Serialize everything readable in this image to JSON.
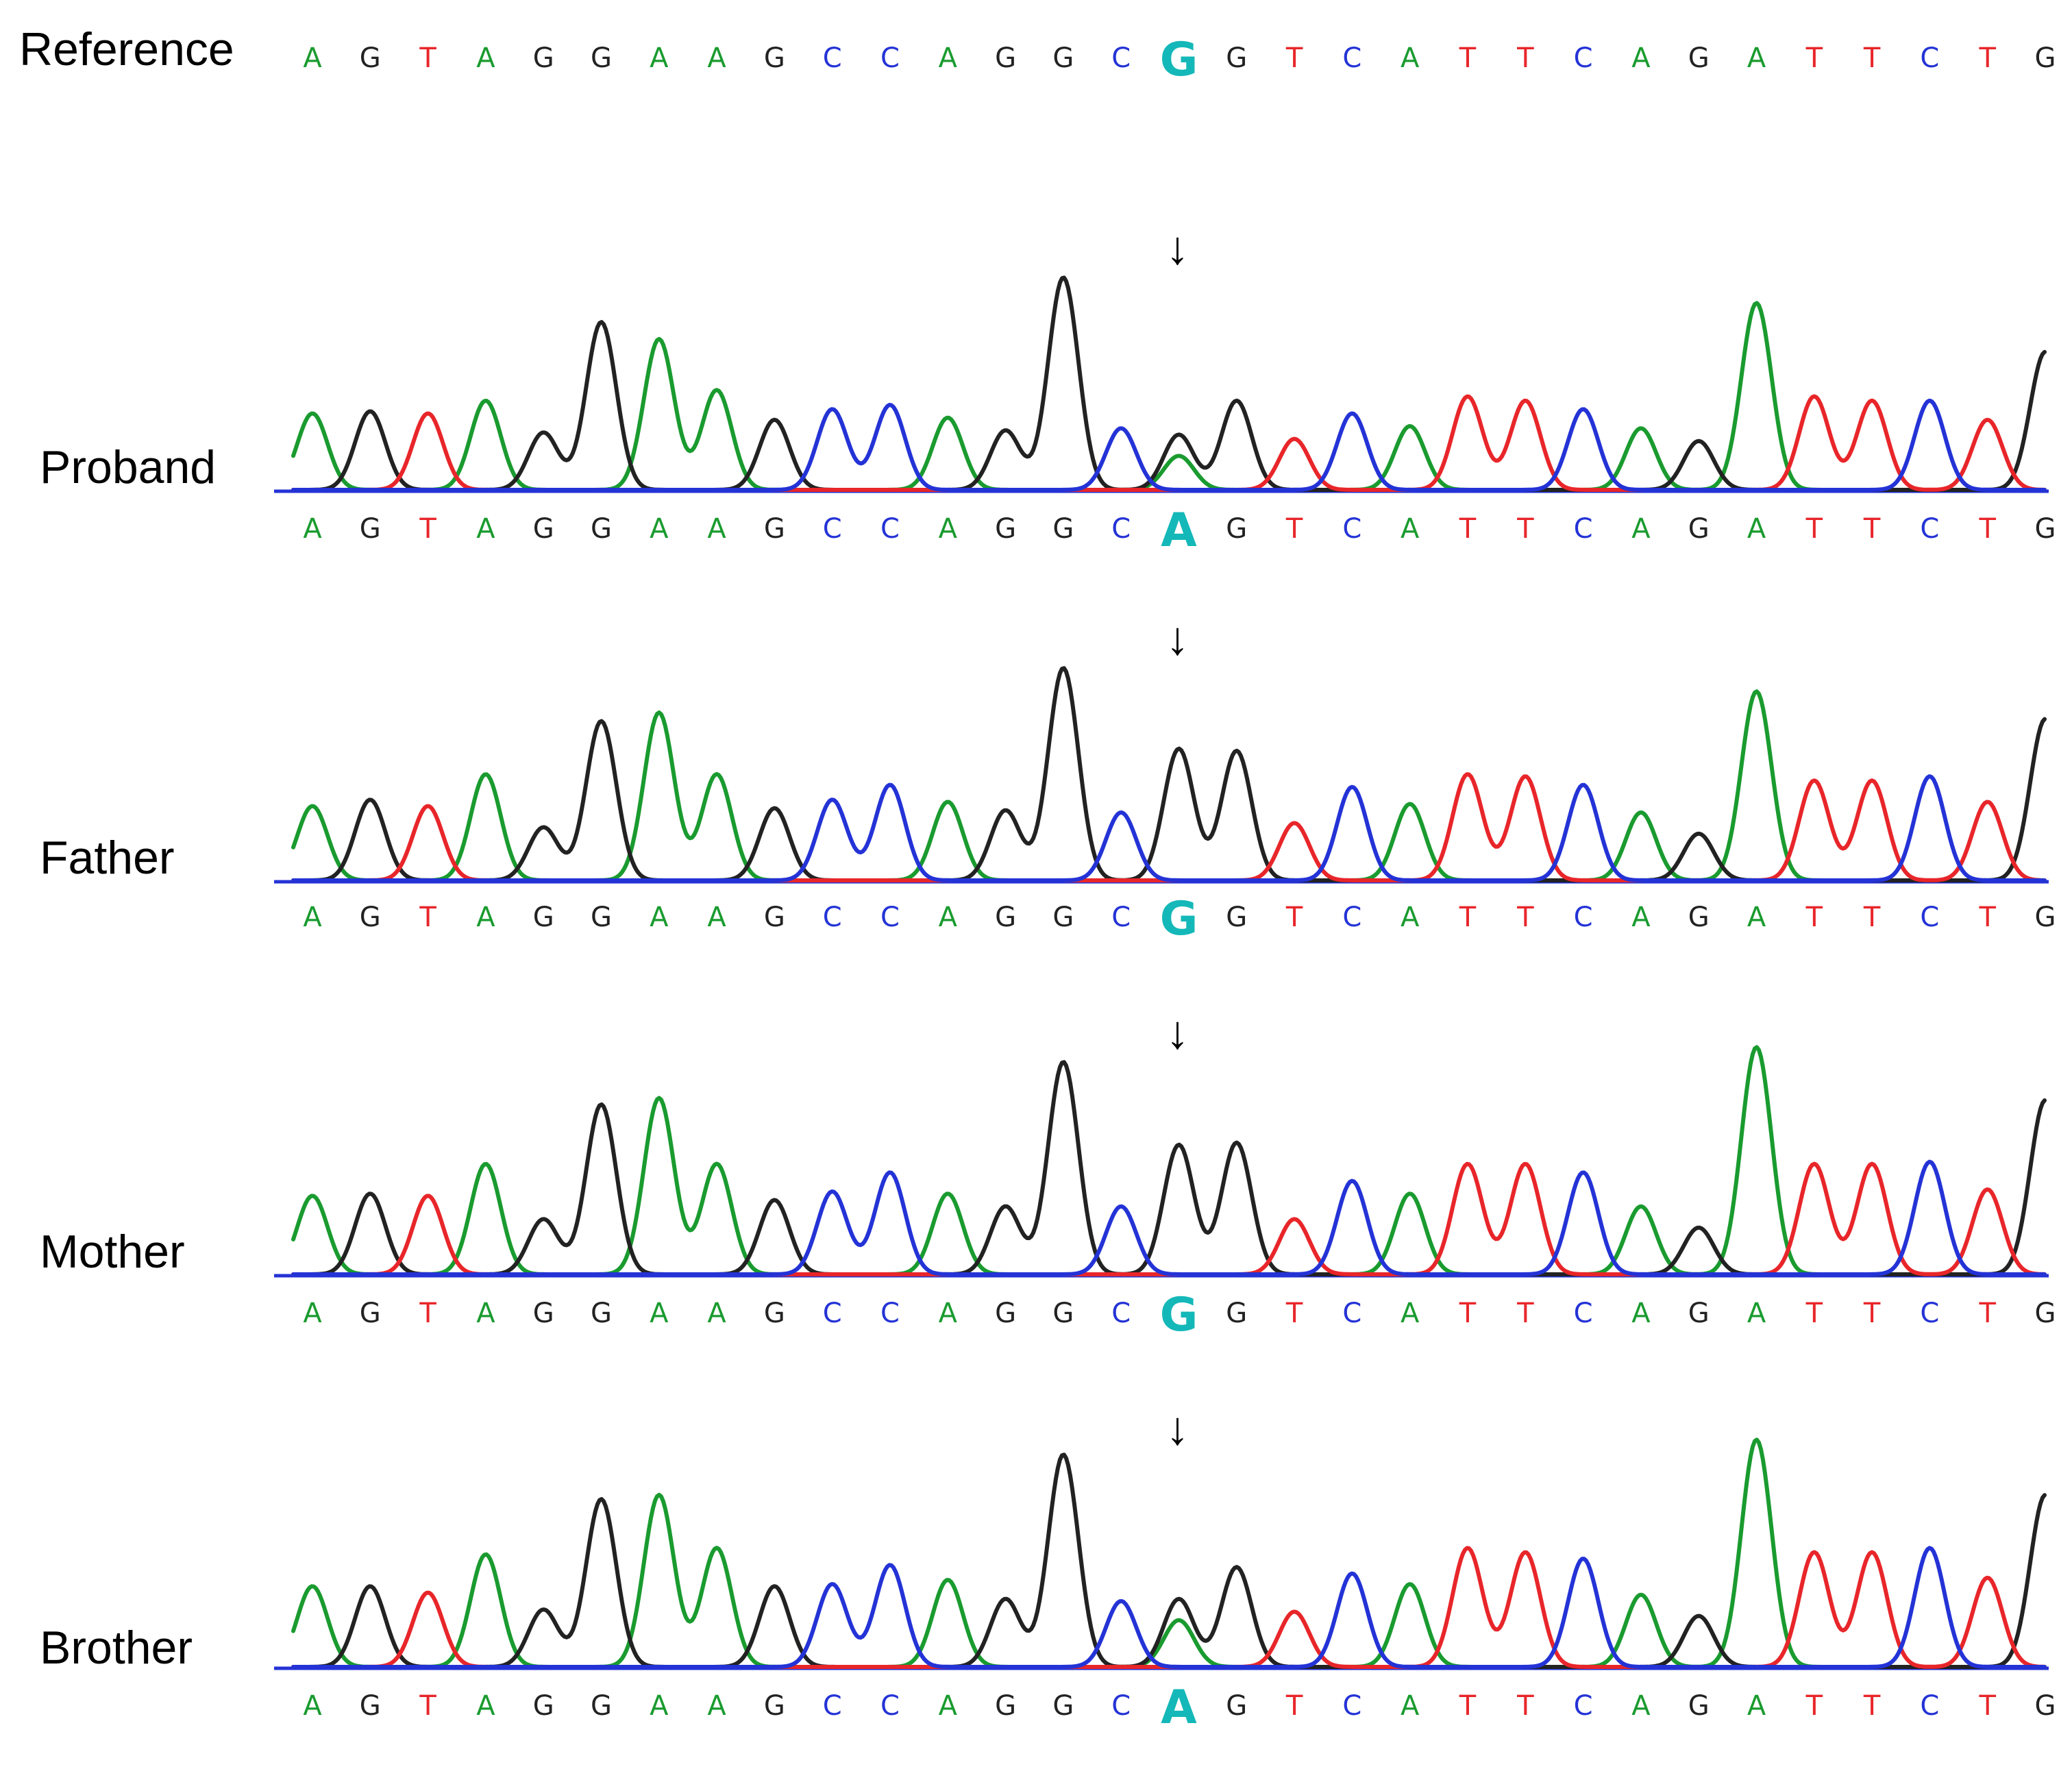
{
  "reference": {
    "label": "Reference",
    "sequence": [
      "A",
      "G",
      "T",
      "A",
      "G",
      "G",
      "A",
      "A",
      "G",
      "C",
      "C",
      "A",
      "G",
      "G",
      "C",
      "G",
      "G",
      "T",
      "C",
      "A",
      "T",
      "T",
      "C",
      "A",
      "G",
      "A",
      "T",
      "T",
      "C",
      "T",
      "G"
    ],
    "highlight_index": 15
  },
  "base_colors": {
    "A": "#1a9b2f",
    "G": "#222222",
    "T": "#e8262a",
    "C": "#2433d6",
    "highlight": "#14b8b8"
  },
  "arrow": {
    "glyph": "↓",
    "color": "#e8262a",
    "base_index": 15
  },
  "samples": [
    {
      "label": "Proband",
      "sequence": [
        "A",
        "G",
        "T",
        "A",
        "G",
        "G",
        "A",
        "A",
        "G",
        "C",
        "C",
        "A",
        "G",
        "G",
        "C",
        "A",
        "G",
        "T",
        "C",
        "A",
        "T",
        "T",
        "C",
        "A",
        "G",
        "A",
        "T",
        "T",
        "C",
        "T",
        "G"
      ],
      "highlight_index": 15,
      "peaks": [
        {
          "base": "A",
          "h": 0.36
        },
        {
          "base": "G",
          "h": 0.37
        },
        {
          "base": "T",
          "h": 0.36
        },
        {
          "base": "A",
          "h": 0.42
        },
        {
          "base": "G",
          "h": 0.27
        },
        {
          "base": "G",
          "h": 0.79
        },
        {
          "base": "A",
          "h": 0.71
        },
        {
          "base": "A",
          "h": 0.47
        },
        {
          "base": "G",
          "h": 0.33
        },
        {
          "base": "C",
          "h": 0.38
        },
        {
          "base": "C",
          "h": 0.4
        },
        {
          "base": "A",
          "h": 0.34
        },
        {
          "base": "G",
          "h": 0.28
        },
        {
          "base": "G",
          "h": 1.0
        },
        {
          "base": "C",
          "h": 0.29
        },
        {
          "base": "G",
          "h": 0.26,
          "second": "A",
          "h2": 0.16
        },
        {
          "base": "G",
          "h": 0.42
        },
        {
          "base": "T",
          "h": 0.24
        },
        {
          "base": "C",
          "h": 0.36
        },
        {
          "base": "A",
          "h": 0.3
        },
        {
          "base": "T",
          "h": 0.44
        },
        {
          "base": "T",
          "h": 0.42
        },
        {
          "base": "C",
          "h": 0.38
        },
        {
          "base": "A",
          "h": 0.29
        },
        {
          "base": "G",
          "h": 0.23
        },
        {
          "base": "A",
          "h": 0.88
        },
        {
          "base": "T",
          "h": 0.44
        },
        {
          "base": "T",
          "h": 0.42
        },
        {
          "base": "C",
          "h": 0.42
        },
        {
          "base": "T",
          "h": 0.33
        },
        {
          "base": "G",
          "h": 0.65
        }
      ]
    },
    {
      "label": "Father",
      "sequence": [
        "A",
        "G",
        "T",
        "A",
        "G",
        "G",
        "A",
        "A",
        "G",
        "C",
        "C",
        "A",
        "G",
        "G",
        "C",
        "G",
        "G",
        "T",
        "C",
        "A",
        "T",
        "T",
        "C",
        "A",
        "G",
        "A",
        "T",
        "T",
        "C",
        "T",
        "G"
      ],
      "highlight_index": 15,
      "peaks": [
        {
          "base": "A",
          "h": 0.35
        },
        {
          "base": "G",
          "h": 0.38
        },
        {
          "base": "T",
          "h": 0.35
        },
        {
          "base": "A",
          "h": 0.5
        },
        {
          "base": "G",
          "h": 0.25
        },
        {
          "base": "G",
          "h": 0.75
        },
        {
          "base": "A",
          "h": 0.79
        },
        {
          "base": "A",
          "h": 0.5
        },
        {
          "base": "G",
          "h": 0.34
        },
        {
          "base": "C",
          "h": 0.38
        },
        {
          "base": "C",
          "h": 0.45
        },
        {
          "base": "A",
          "h": 0.37
        },
        {
          "base": "G",
          "h": 0.33
        },
        {
          "base": "G",
          "h": 1.0
        },
        {
          "base": "C",
          "h": 0.32
        },
        {
          "base": "G",
          "h": 0.62
        },
        {
          "base": "G",
          "h": 0.61
        },
        {
          "base": "T",
          "h": 0.27
        },
        {
          "base": "C",
          "h": 0.44
        },
        {
          "base": "A",
          "h": 0.36
        },
        {
          "base": "T",
          "h": 0.5
        },
        {
          "base": "T",
          "h": 0.49
        },
        {
          "base": "C",
          "h": 0.45
        },
        {
          "base": "A",
          "h": 0.32
        },
        {
          "base": "G",
          "h": 0.22
        },
        {
          "base": "A",
          "h": 0.89
        },
        {
          "base": "T",
          "h": 0.47
        },
        {
          "base": "T",
          "h": 0.47
        },
        {
          "base": "C",
          "h": 0.49
        },
        {
          "base": "T",
          "h": 0.37
        },
        {
          "base": "G",
          "h": 0.76
        }
      ]
    },
    {
      "label": "Mother",
      "sequence": [
        "A",
        "G",
        "T",
        "A",
        "G",
        "G",
        "A",
        "A",
        "G",
        "C",
        "C",
        "A",
        "G",
        "G",
        "C",
        "G",
        "G",
        "T",
        "C",
        "A",
        "T",
        "T",
        "C",
        "A",
        "G",
        "A",
        "T",
        "T",
        "C",
        "T",
        "G"
      ],
      "highlight_index": 15,
      "peaks": [
        {
          "base": "A",
          "h": 0.37
        },
        {
          "base": "G",
          "h": 0.38
        },
        {
          "base": "T",
          "h": 0.37
        },
        {
          "base": "A",
          "h": 0.52
        },
        {
          "base": "G",
          "h": 0.26
        },
        {
          "base": "G",
          "h": 0.8
        },
        {
          "base": "A",
          "h": 0.83
        },
        {
          "base": "A",
          "h": 0.52
        },
        {
          "base": "G",
          "h": 0.35
        },
        {
          "base": "C",
          "h": 0.39
        },
        {
          "base": "C",
          "h": 0.48
        },
        {
          "base": "A",
          "h": 0.38
        },
        {
          "base": "G",
          "h": 0.32
        },
        {
          "base": "G",
          "h": 1.0
        },
        {
          "base": "C",
          "h": 0.32
        },
        {
          "base": "G",
          "h": 0.61
        },
        {
          "base": "G",
          "h": 0.62
        },
        {
          "base": "T",
          "h": 0.26
        },
        {
          "base": "C",
          "h": 0.44
        },
        {
          "base": "A",
          "h": 0.38
        },
        {
          "base": "T",
          "h": 0.52
        },
        {
          "base": "T",
          "h": 0.52
        },
        {
          "base": "C",
          "h": 0.48
        },
        {
          "base": "A",
          "h": 0.32
        },
        {
          "base": "G",
          "h": 0.22
        },
        {
          "base": "A",
          "h": 1.07
        },
        {
          "base": "T",
          "h": 0.52
        },
        {
          "base": "T",
          "h": 0.52
        },
        {
          "base": "C",
          "h": 0.53
        },
        {
          "base": "T",
          "h": 0.4
        },
        {
          "base": "G",
          "h": 0.82
        }
      ]
    },
    {
      "label": "Brother",
      "sequence": [
        "A",
        "G",
        "T",
        "A",
        "G",
        "G",
        "A",
        "A",
        "G",
        "C",
        "C",
        "A",
        "G",
        "G",
        "C",
        "A",
        "G",
        "T",
        "C",
        "A",
        "T",
        "T",
        "C",
        "A",
        "G",
        "A",
        "T",
        "T",
        "C",
        "T",
        "G"
      ],
      "highlight_index": 15,
      "peaks": [
        {
          "base": "A",
          "h": 0.38
        },
        {
          "base": "G",
          "h": 0.38
        },
        {
          "base": "T",
          "h": 0.35
        },
        {
          "base": "A",
          "h": 0.53
        },
        {
          "base": "G",
          "h": 0.27
        },
        {
          "base": "G",
          "h": 0.79
        },
        {
          "base": "A",
          "h": 0.81
        },
        {
          "base": "A",
          "h": 0.56
        },
        {
          "base": "G",
          "h": 0.38
        },
        {
          "base": "C",
          "h": 0.39
        },
        {
          "base": "C",
          "h": 0.48
        },
        {
          "base": "A",
          "h": 0.41
        },
        {
          "base": "G",
          "h": 0.32
        },
        {
          "base": "G",
          "h": 1.0
        },
        {
          "base": "C",
          "h": 0.31
        },
        {
          "base": "G",
          "h": 0.32,
          "second": "A",
          "h2": 0.22
        },
        {
          "base": "G",
          "h": 0.47
        },
        {
          "base": "T",
          "h": 0.26
        },
        {
          "base": "C",
          "h": 0.44
        },
        {
          "base": "A",
          "h": 0.39
        },
        {
          "base": "T",
          "h": 0.56
        },
        {
          "base": "T",
          "h": 0.54
        },
        {
          "base": "C",
          "h": 0.51
        },
        {
          "base": "A",
          "h": 0.34
        },
        {
          "base": "G",
          "h": 0.24
        },
        {
          "base": "A",
          "h": 1.07
        },
        {
          "base": "T",
          "h": 0.54
        },
        {
          "base": "T",
          "h": 0.54
        },
        {
          "base": "C",
          "h": 0.56
        },
        {
          "base": "T",
          "h": 0.42
        },
        {
          "base": "G",
          "h": 0.81
        }
      ]
    }
  ]
}
